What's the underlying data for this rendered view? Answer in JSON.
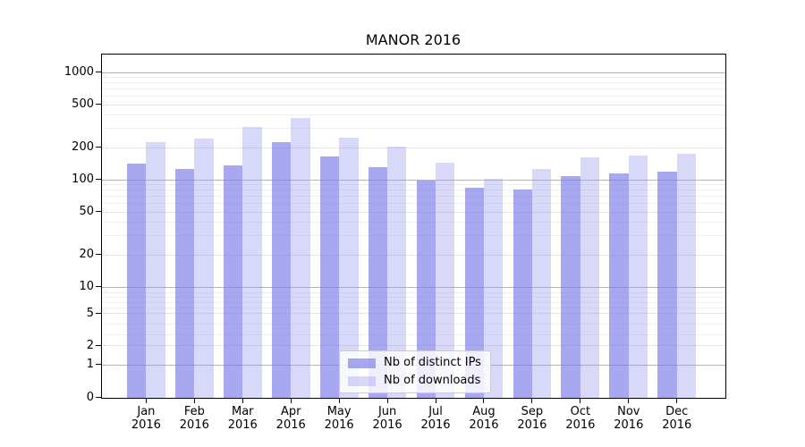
{
  "chart_data": {
    "type": "bar",
    "title": "MANOR 2016",
    "categories": [
      "Jan 2016",
      "Feb 2016",
      "Mar 2016",
      "Apr 2016",
      "May 2016",
      "Jun 2016",
      "Jul 2016",
      "Aug 2016",
      "Sep 2016",
      "Oct 2016",
      "Nov 2016",
      "Dec 2016"
    ],
    "series": [
      {
        "name": "Nb of distinct IPs",
        "color": "#7979e8",
        "alpha": 0.65,
        "values": [
          140,
          125,
          136,
          224,
          165,
          130,
          98,
          84,
          80,
          107,
          113,
          119
        ]
      },
      {
        "name": "Nb of downloads",
        "color": "#9090eb",
        "alpha": 0.35,
        "values": [
          223,
          240,
          310,
          374,
          245,
          202,
          143,
          101,
          125,
          160,
          167,
          175
        ]
      }
    ],
    "y_axis": {
      "scale": "symlog",
      "ticks": [
        0,
        1,
        2,
        5,
        10,
        20,
        50,
        100,
        200,
        500,
        1000
      ],
      "ylim": [
        0,
        1300
      ],
      "major_grid_values": [
        1,
        10,
        100,
        1000
      ],
      "sub_grid_values": [
        2,
        5,
        20,
        50,
        200,
        500
      ],
      "minor_grid_values": [
        3,
        4,
        6,
        7,
        8,
        9,
        30,
        40,
        60,
        70,
        80,
        90,
        300,
        400,
        600,
        700,
        800,
        900
      ]
    },
    "grid": true,
    "legend_position": "bottom-center",
    "grid_colors": {
      "major": "#b5b5b5",
      "sub": "#e4e4e4",
      "minor": "#f0f0f0"
    }
  }
}
